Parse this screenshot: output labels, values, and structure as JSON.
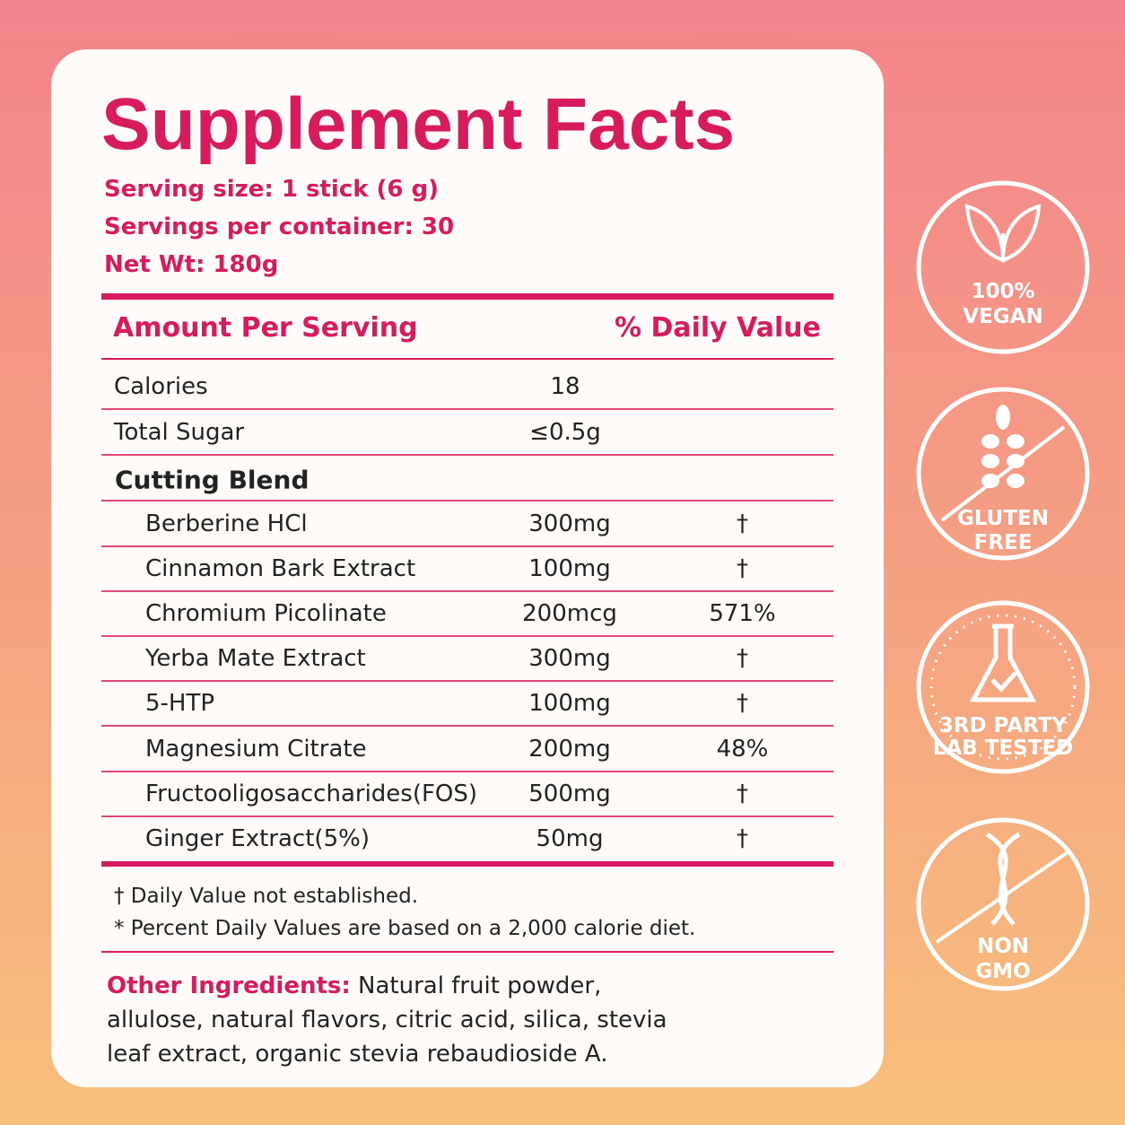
{
  "title": "Supplement Facts",
  "serving": [
    "Serving size: 1 stick (6 g)",
    "Servings per container: 30",
    "Net Wt: 180g"
  ],
  "table": {
    "header": [
      "Amount Per Serving",
      "% Daily Value"
    ],
    "rows": [
      {
        "name": "Calories",
        "amount": "18"
      },
      {
        "name": "Total Sugar",
        "amount": "≤0.5g"
      }
    ],
    "section": "Cutting Blend",
    "ingredients": [
      {
        "name": "Berberine HCl",
        "amount": "300mg",
        "dv": "†"
      },
      {
        "name": "Cinnamon Bark Extract",
        "amount": "100mg",
        "dv": "†"
      },
      {
        "name": "Chromium Picolinate",
        "amount": "200mcg",
        "dv": "571%"
      },
      {
        "name": "Yerba Mate Extract",
        "amount": "300mg",
        "dv": "†"
      },
      {
        "name": "5-HTP",
        "amount": "100mg",
        "dv": "†"
      },
      {
        "name": "Magnesium Citrate",
        "amount": "200mg",
        "dv": "48%"
      },
      {
        "name": "Fructooligosaccharides(FOS)",
        "amount": "500mg",
        "dv": "†"
      },
      {
        "name": "Ginger Extract(5%)",
        "amount": "50mg",
        "dv": "†"
      }
    ]
  },
  "footnotes": [
    "† Daily Value not established.",
    "* Percent Daily Values are based on a 2,000 calorie diet."
  ],
  "other_ingredients": {
    "label": "Other Ingredients:",
    "text": "Natural fruit powder, allulose, natural flavors, citric acid, silica, stevia leaf extract, organic stevia rebaudioside A."
  },
  "badges": [
    {
      "lines": [
        "100%",
        "VEGAN"
      ]
    },
    {
      "lines": [
        "GLUTEN",
        "FREE"
      ]
    },
    {
      "lines": [
        "3RD PARTY",
        "LAB TESTED"
      ]
    },
    {
      "lines": [
        "NON",
        "GMO"
      ]
    }
  ]
}
